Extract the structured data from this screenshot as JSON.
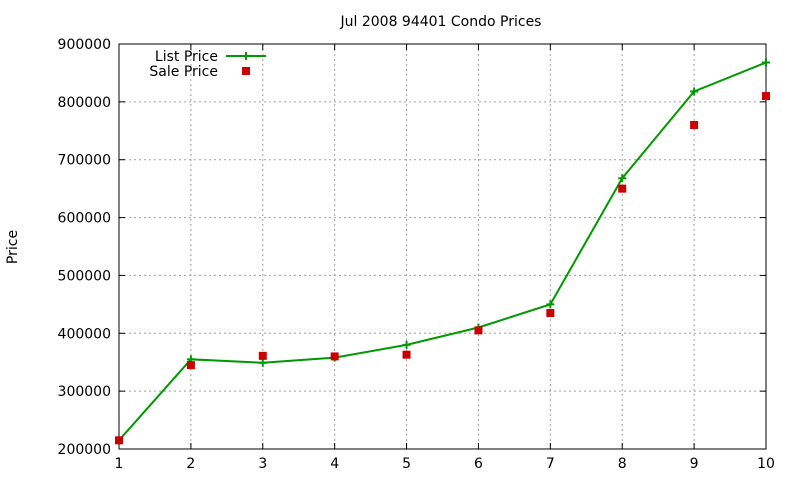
{
  "chart_data": {
    "type": "line",
    "title": "Jul 2008 94401 Condo Prices",
    "xlabel": "",
    "ylabel": "Price",
    "x": [
      1,
      2,
      3,
      4,
      5,
      6,
      7,
      8,
      9,
      10
    ],
    "xlim": [
      1,
      10
    ],
    "ylim": [
      200000,
      900000
    ],
    "yticks": [
      200000,
      300000,
      400000,
      500000,
      600000,
      700000,
      800000,
      900000
    ],
    "xticks": [
      1,
      2,
      3,
      4,
      5,
      6,
      7,
      8,
      9,
      10
    ],
    "grid": true,
    "legend_position": "top-left",
    "series": [
      {
        "name": "List Price",
        "style": "line-with-plus-markers",
        "color": "#009900",
        "values": [
          215000,
          355000,
          349000,
          358000,
          380000,
          410000,
          450000,
          668000,
          818000,
          868000
        ]
      },
      {
        "name": "Sale Price",
        "style": "square-markers",
        "color": "#cc0000",
        "values": [
          215000,
          345000,
          361000,
          360000,
          363000,
          405000,
          435000,
          650000,
          760000,
          810000
        ]
      }
    ]
  }
}
